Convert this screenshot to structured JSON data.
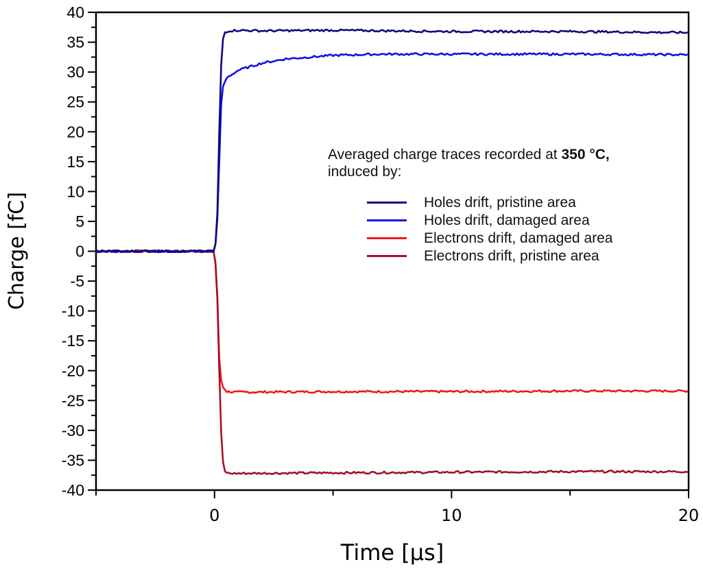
{
  "chart_data": {
    "type": "line",
    "title": "",
    "xlabel": "Time [μs]",
    "ylabel": "Charge [fC]",
    "xlim": [
      -5,
      20
    ],
    "ylim": [
      -40,
      40
    ],
    "x_ticks": [
      0,
      10,
      20
    ],
    "x_minor_ticks": [
      -5,
      5,
      15
    ],
    "y_ticks": [
      -40,
      -35,
      -30,
      -25,
      -20,
      -15,
      -10,
      -5,
      0,
      5,
      10,
      15,
      20,
      25,
      30,
      35,
      40
    ],
    "grid": false,
    "legend_position": "center-right",
    "legend_title": "Averaged charge traces recorded at",
    "legend_title_bold": "350 °C,",
    "legend_title_line2": "induced by:",
    "series": [
      {
        "name": "Holes drift, pristine area",
        "color": "#0a0a7a",
        "x": [
          -5,
          0,
          0.1,
          0.2,
          0.3,
          0.4,
          0.6,
          1,
          2,
          5,
          10,
          15,
          20
        ],
        "values": [
          0,
          0,
          3,
          20,
          34,
          36.6,
          36.9,
          37,
          36.9,
          37,
          36.8,
          36.8,
          36.6
        ]
      },
      {
        "name": "Holes drift, damaged area",
        "color": "#1010e8",
        "x": [
          -5,
          0,
          0.1,
          0.2,
          0.3,
          0.5,
          1,
          2,
          3,
          5,
          7,
          10,
          15,
          20
        ],
        "values": [
          0,
          0,
          3,
          15,
          27,
          29,
          30.3,
          31.5,
          32.2,
          32.8,
          33,
          33,
          33,
          32.9
        ]
      },
      {
        "name": "Electrons drift, damaged area",
        "color": "#f01818",
        "x": [
          -5,
          0,
          0.1,
          0.2,
          0.3,
          0.5,
          1,
          5,
          10,
          15,
          20
        ],
        "values": [
          0,
          0,
          -5,
          -18,
          -22.5,
          -23.5,
          -23.6,
          -23.5,
          -23.5,
          -23.4,
          -23.4
        ],
        "note": "plateau ≈ -23.5 fC"
      },
      {
        "name": "Electrons drift, pristine area",
        "color": "#a0102a",
        "x": [
          -5,
          0,
          0.1,
          0.2,
          0.3,
          0.4,
          0.6,
          1,
          5,
          10,
          15,
          20
        ],
        "values": [
          0,
          0,
          -5,
          -20,
          -33,
          -36.8,
          -37.2,
          -37.2,
          -37.1,
          -37,
          -36.9,
          -36.9
        ]
      }
    ]
  },
  "legend": {
    "title_prefix": "Averaged charge traces recorded at ",
    "title_bold": "350 °C,",
    "title_line2": "induced by:",
    "items": [
      {
        "label": "Holes drift, pristine area",
        "color": "#0a0a7a"
      },
      {
        "label": "Holes drift, damaged area",
        "color": "#1010e8"
      },
      {
        "label": "Electrons drift, damaged area",
        "color": "#f01818"
      },
      {
        "label": "Electrons drift, pristine area",
        "color": "#a0102a"
      }
    ]
  },
  "axes": {
    "xlabel": "Time [μs]",
    "ylabel": "Charge [fC]"
  }
}
